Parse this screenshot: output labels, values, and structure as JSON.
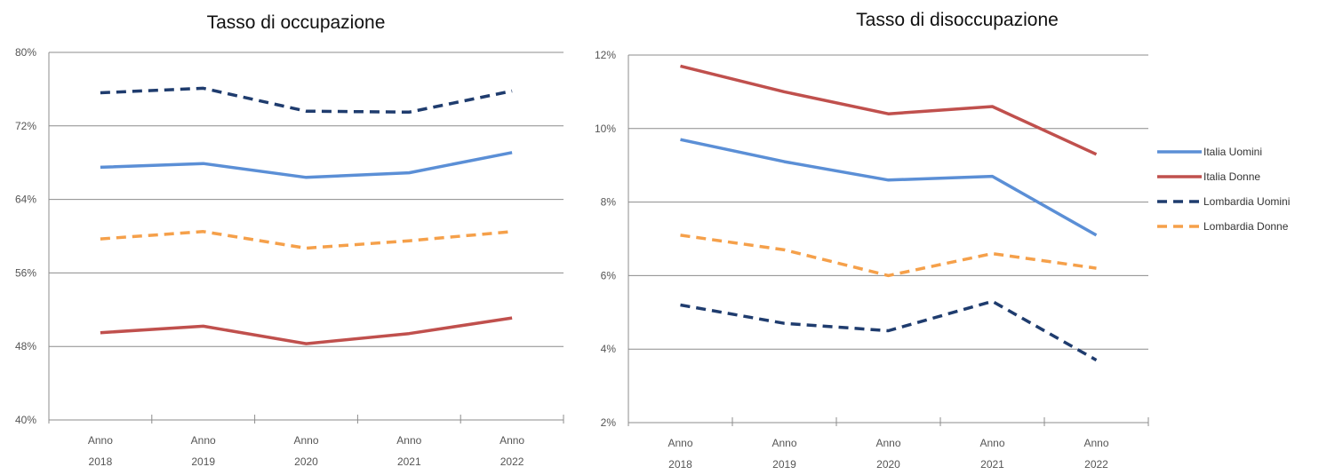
{
  "chart_data": [
    {
      "type": "line",
      "title": "Tasso di occupazione",
      "xlabel": "",
      "ylabel": "",
      "categories": [
        [
          "Anno",
          "2018"
        ],
        [
          "Anno",
          "2019"
        ],
        [
          "Anno",
          "2020"
        ],
        [
          "Anno",
          "2021"
        ],
        [
          "Anno",
          "2022"
        ]
      ],
      "ylim": [
        40,
        80
      ],
      "yticks": [
        40,
        48,
        56,
        64,
        72,
        80
      ],
      "ytick_labels": [
        "40%",
        "48%",
        "56%",
        "64%",
        "72%",
        "80%"
      ],
      "grid": true,
      "series": [
        {
          "key": "italia_uomini",
          "values": [
            67.5,
            67.9,
            66.4,
            66.9,
            69.1
          ]
        },
        {
          "key": "italia_donne",
          "values": [
            49.5,
            50.2,
            48.3,
            49.4,
            51.1
          ]
        },
        {
          "key": "lombardia_uomini",
          "values": [
            75.6,
            76.1,
            73.6,
            73.5,
            75.8
          ]
        },
        {
          "key": "lombardia_donne",
          "values": [
            59.7,
            60.5,
            58.7,
            59.5,
            60.5
          ]
        }
      ]
    },
    {
      "type": "line",
      "title": "Tasso di disoccupazione",
      "xlabel": "",
      "ylabel": "",
      "categories": [
        [
          "Anno",
          "2018"
        ],
        [
          "Anno",
          "2019"
        ],
        [
          "Anno",
          "2020"
        ],
        [
          "Anno",
          "2021"
        ],
        [
          "Anno",
          "2022"
        ]
      ],
      "ylim": [
        2,
        12
      ],
      "yticks": [
        2,
        4,
        6,
        8,
        10,
        12
      ],
      "ytick_labels": [
        "2%",
        "4%",
        "6%",
        "8%",
        "10%",
        "12%"
      ],
      "grid": true,
      "legend_position": "right",
      "series": [
        {
          "key": "italia_uomini",
          "values": [
            9.7,
            9.1,
            8.6,
            8.7,
            7.1
          ]
        },
        {
          "key": "italia_donne",
          "values": [
            11.7,
            11.0,
            10.4,
            10.6,
            9.3
          ]
        },
        {
          "key": "lombardia_uomini",
          "values": [
            5.2,
            4.7,
            4.5,
            5.3,
            3.7
          ]
        },
        {
          "key": "lombardia_donne",
          "values": [
            7.1,
            6.7,
            6.0,
            6.6,
            6.2
          ]
        }
      ]
    }
  ],
  "legend": [
    {
      "key": "italia_uomini",
      "label": "Italia Uomini",
      "color": "#5b8fd6",
      "dash": "solid"
    },
    {
      "key": "italia_donne",
      "label": "Italia Donne",
      "color": "#c0504d",
      "dash": "solid"
    },
    {
      "key": "lombardia_uomini",
      "label": "Lombardia Uomini",
      "color": "#1f3c6e",
      "dash": "dashed"
    },
    {
      "key": "lombardia_donne",
      "label": "Lombardia Donne",
      "color": "#f5a04a",
      "dash": "dashed"
    }
  ],
  "colors": {
    "grid": "#8c8c8c",
    "axis": "#8c8c8c"
  }
}
